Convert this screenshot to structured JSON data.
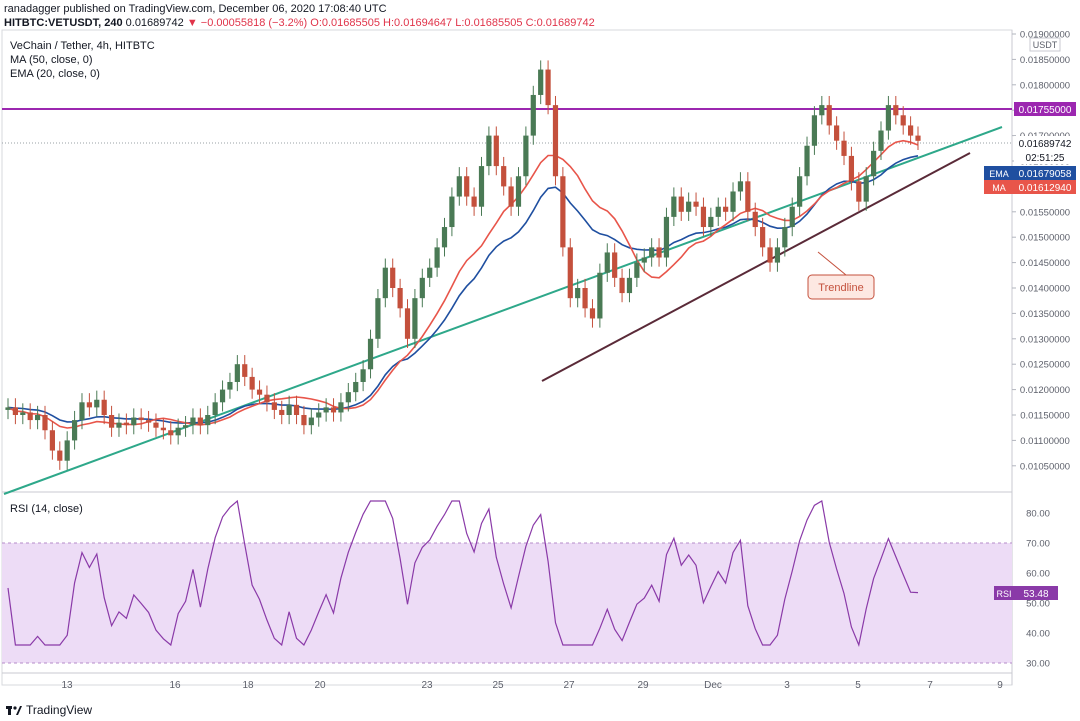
{
  "header": {
    "line1": "ranadagger published on TradingView.com, December 06, 2020 17:08:40 UTC",
    "line2_symbol": "HITBTC:VETUSDT, 240",
    "line2_last": "0.01689742",
    "line2_arrow": "▼",
    "line2_change": "−0.00055818 (−3.2%)",
    "line2_ohlc": "O:0.01685505 H:0.01694647 L:0.01685505 C:0.01689742"
  },
  "legend": {
    "title": "VeChain / Tether, 4h, HITBTC",
    "ma": "MA (50, close, 0)",
    "ema": "EMA (20, close, 0)",
    "rsi": "RSI (14, close)"
  },
  "badges": {
    "currency": "USDT",
    "resistance": "0.01755000",
    "last": "0.01689742",
    "countdown": "02:51:25",
    "ema_tag": "EMA",
    "ema_value": "0.01679058",
    "ma_tag": "MA",
    "ma_value": "0.01612940",
    "rsi_tag": "RSI",
    "rsi_value": "53.48"
  },
  "annotation": {
    "trendline_label": "Trendline"
  },
  "footer": {
    "brand": "TradingView"
  },
  "colors": {
    "up": "#4a7a55",
    "down": "#c4503c",
    "ema": "#1f4fa0",
    "ma": "#e8554a",
    "resistance": "#9c27b0",
    "support_green": "#2ea88a",
    "trend_dark": "#5a2a38",
    "rsi_line": "#8a3aa8",
    "rsi_band": "#eddcf6",
    "trendline_label": "#c4503c"
  },
  "chart_data": [
    {
      "type": "candlestick",
      "title": "VeChain / Tether, 4h, HITBTC",
      "ylim": [
        0.0101,
        0.0191
      ],
      "y_ticks": [
        "0.01900000",
        "0.01850000",
        "0.01800000",
        "0.01750000",
        "0.01700000",
        "0.01650000",
        "0.01600000",
        "0.01550000",
        "0.01500000",
        "0.01450000",
        "0.01400000",
        "0.01350000",
        "0.01300000",
        "0.01250000",
        "0.01200000",
        "0.01150000",
        "0.01100000",
        "0.01050000"
      ],
      "x_ticks": [
        "13",
        "16",
        "18",
        "20",
        "23",
        "25",
        "27",
        "29",
        "Dec",
        "3",
        "5",
        "7",
        "9"
      ],
      "resistance_level": 0.01755,
      "trendlines": [
        {
          "name": "Trendline",
          "points": [
            [
              "2020-11-26",
              0.0123
            ],
            [
              "2020-12-08",
              0.0167
            ]
          ]
        },
        {
          "name": "",
          "points": [
            [
              "2020-11-11",
              0.0102
            ],
            [
              "2020-12-08",
              0.0172
            ]
          ]
        }
      ],
      "series": [
        {
          "name": "EMA (20, close, 0)",
          "last": 0.01679058
        },
        {
          "name": "MA (50, close, 0)",
          "last": 0.0161294
        }
      ],
      "last_price": 0.01689742
    },
    {
      "type": "line",
      "title": "RSI (14, close)",
      "ylim": [
        27,
        86
      ],
      "y_ticks": [
        "80.00",
        "70.00",
        "60.00",
        "50.00",
        "40.00",
        "30.00"
      ],
      "band": [
        30,
        70
      ],
      "last": 53.48
    }
  ]
}
